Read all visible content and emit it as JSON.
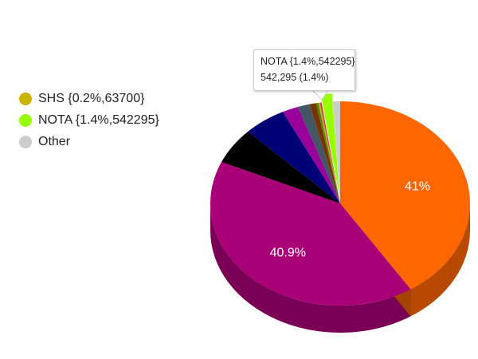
{
  "chart_data": {
    "type": "pie",
    "style": "3d",
    "title": "",
    "slices": [
      {
        "label": "",
        "percent": 41.0,
        "color": "#ff6600",
        "label_text": "41%"
      },
      {
        "label": "",
        "percent": 40.9,
        "color": "#aa0077",
        "label_text": "40.9%"
      },
      {
        "label": "",
        "percent": 5.8,
        "color": "#000000"
      },
      {
        "label": "",
        "percent": 5.3,
        "color": "#000077"
      },
      {
        "label": "",
        "percent": 2.0,
        "color": "#990099"
      },
      {
        "label": "",
        "percent": 1.5,
        "color": "#445566"
      },
      {
        "label": "",
        "percent": 0.8,
        "color": "#773300"
      },
      {
        "label": "",
        "percent": 0.3,
        "color": "#558800"
      },
      {
        "label": "SHS {0.2%,63700}",
        "percent": 0.2,
        "value": 63700,
        "color": "#c8b400"
      },
      {
        "label": "",
        "percent": 0.2,
        "color": "#cc3366"
      },
      {
        "label": "NOTA {1.4%,542295}",
        "percent": 1.4,
        "value": 542295,
        "color": "#99ff00",
        "exploded": true
      },
      {
        "label": "Other",
        "percent": 0.9,
        "color": "#cccccc"
      }
    ],
    "legend": [
      {
        "label": "SHS {0.2%,63700}",
        "color": "#c8b400"
      },
      {
        "label": "NOTA {1.4%,542295}",
        "color": "#99ff00"
      },
      {
        "label": "Other",
        "color": "#cccccc"
      }
    ],
    "legend_position": "left",
    "tooltip": {
      "title": "NOTA {1.4%,542295}",
      "value": "542,295 (1.4%)"
    }
  }
}
